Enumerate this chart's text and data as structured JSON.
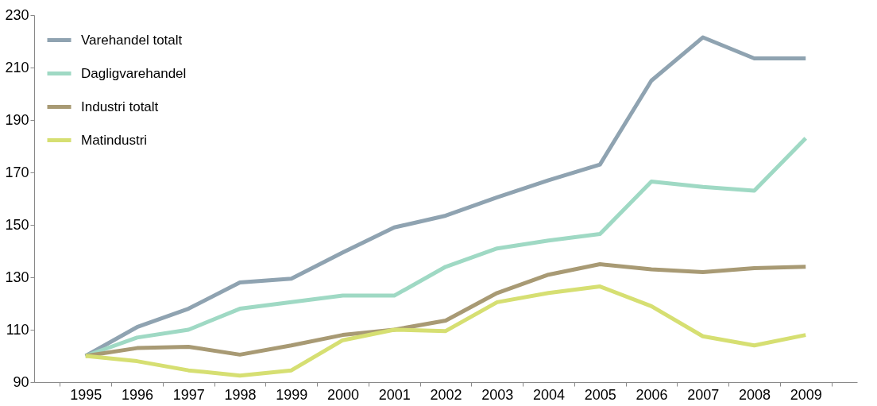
{
  "chart_data": {
    "type": "line",
    "categories": [
      "1995",
      "1996",
      "1997",
      "1998",
      "1999",
      "2000",
      "2001",
      "2002",
      "2003",
      "2004",
      "2005",
      "2006",
      "2007",
      "2008",
      "2009"
    ],
    "series": [
      {
        "name": "Varehandel totalt",
        "color": "#8fa3b1",
        "values": [
          100,
          111,
          118,
          128,
          129.5,
          139.5,
          149,
          153.5,
          160.5,
          167,
          173,
          205,
          221.5,
          213.5,
          213.5
        ]
      },
      {
        "name": "Dagligvarehandel",
        "color": "#9fd9c4",
        "values": [
          100,
          107,
          110,
          118,
          120.5,
          123,
          123,
          134,
          141,
          144,
          146.5,
          166.5,
          164.5,
          163,
          183
        ]
      },
      {
        "name": "Industri totalt",
        "color": "#a89a74",
        "values": [
          100,
          103,
          103.5,
          100.5,
          104,
          108,
          110,
          113.5,
          124,
          131,
          135,
          133,
          132,
          133.5,
          134
        ]
      },
      {
        "name": "Matindustri",
        "color": "#d6df72",
        "values": [
          100,
          98,
          94.5,
          92.5,
          94.5,
          106,
          110,
          109.5,
          120.5,
          124,
          126.5,
          119,
          107.5,
          104,
          108
        ]
      }
    ],
    "ylim": [
      90,
      230
    ],
    "yticks": [
      90,
      110,
      130,
      150,
      170,
      190,
      210,
      230
    ],
    "grid": false,
    "legend": "top left",
    "marker": "none",
    "line_style": "solid"
  }
}
